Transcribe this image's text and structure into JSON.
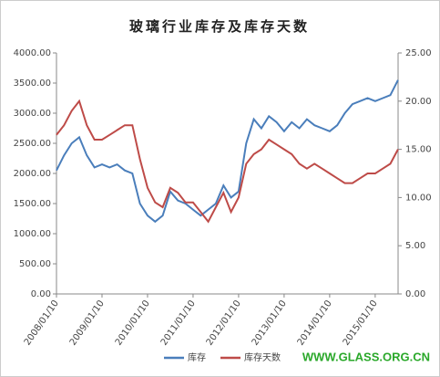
{
  "chart_data": {
    "type": "line",
    "title": "玻璃行业库存及库存天数",
    "watermark": "WWW.GLASS.ORG.CN",
    "categories": [
      "2008/01/10",
      null,
      null,
      null,
      null,
      null,
      "2009/01/10",
      null,
      null,
      null,
      null,
      null,
      "2010/01/10",
      null,
      null,
      null,
      null,
      null,
      "2011/01/10",
      null,
      null,
      null,
      null,
      null,
      "2012/01/10",
      null,
      null,
      null,
      null,
      null,
      "2013/01/10",
      null,
      null,
      null,
      null,
      null,
      "2014/01/10",
      null,
      null,
      null,
      null,
      null,
      "2015/01/10",
      null,
      null,
      null
    ],
    "series": [
      {
        "name": "库存",
        "color": "#4a7ebb",
        "values": [
          2050,
          2300,
          2500,
          2600,
          2300,
          2100,
          2150,
          2100,
          2150,
          2050,
          2000,
          1500,
          1300,
          1200,
          1300,
          1700,
          1550,
          1500,
          1400,
          1300,
          1400,
          1500,
          1800,
          1600,
          1700,
          2500,
          2900,
          2750,
          2950,
          2850,
          2700,
          2850,
          2750,
          2900,
          2800,
          2750,
          2700,
          2800,
          3000,
          3150,
          3200,
          3250,
          3200,
          3250,
          3300,
          3550
        ]
      },
      {
        "name": "库存天数",
        "color": "#be4b48",
        "axis": "y2",
        "values": [
          16.5,
          17.5,
          19,
          20,
          17.5,
          16,
          16,
          16.5,
          17,
          17.5,
          17.5,
          14,
          11,
          9.5,
          9,
          11,
          10.5,
          9.5,
          9.5,
          8.5,
          7.5,
          9,
          10.5,
          8.5,
          10,
          13.5,
          14.5,
          15,
          16,
          15.5,
          15,
          14.5,
          13.5,
          13,
          13.5,
          13,
          12.5,
          12,
          11.5,
          11.5,
          12,
          12.5,
          12.5,
          13,
          13.5,
          15
        ]
      }
    ],
    "ylim": [
      0,
      4000
    ],
    "yticks": [
      {
        "value": 0,
        "label": "0.00"
      },
      {
        "value": 500,
        "label": "500.00"
      },
      {
        "value": 1000,
        "label": "1000.00"
      },
      {
        "value": 1500,
        "label": "1500.00"
      },
      {
        "value": 2000,
        "label": "2000.00"
      },
      {
        "value": 2500,
        "label": "2500.00"
      },
      {
        "value": 3000,
        "label": "3000.00"
      },
      {
        "value": 3500,
        "label": "3500.00"
      },
      {
        "value": 4000,
        "label": "4000.00"
      }
    ],
    "y2lim": [
      0,
      25
    ],
    "y2ticks": [
      {
        "value": 0,
        "label": "0.00"
      },
      {
        "value": 5,
        "label": "5.00"
      },
      {
        "value": 10,
        "label": "10.00"
      },
      {
        "value": 15,
        "label": "15.00"
      },
      {
        "value": 20,
        "label": "20.00"
      },
      {
        "value": 25,
        "label": "25.00"
      }
    ],
    "legend": "bottom"
  }
}
